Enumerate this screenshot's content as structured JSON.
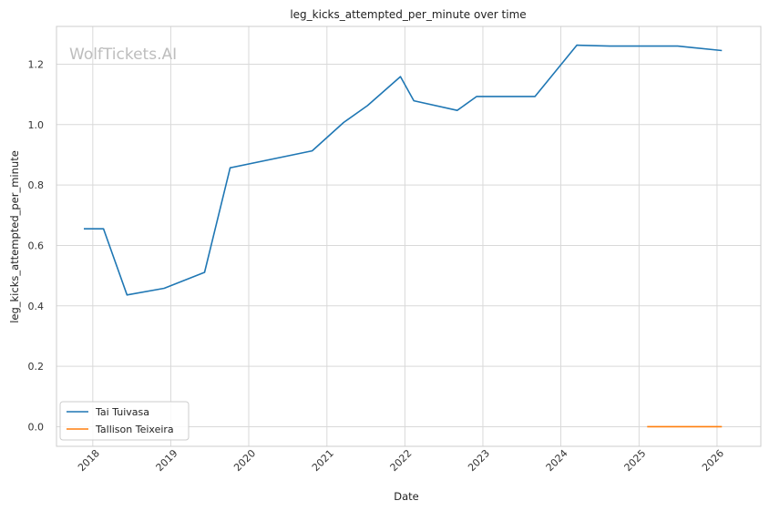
{
  "chart_data": {
    "type": "line",
    "title": "leg_kicks_attempted_per_minute over time",
    "xlabel": "Date",
    "ylabel": "leg_kicks_attempted_per_minute",
    "watermark": "WolfTickets.AI",
    "x_ticks": [
      "2018",
      "2019",
      "2020",
      "2021",
      "2022",
      "2023",
      "2024",
      "2025",
      "2026"
    ],
    "y_ticks": [
      "0.0",
      "0.2",
      "0.4",
      "0.6",
      "0.8",
      "1.0",
      "1.2"
    ],
    "xlim": [
      "2017-07-15",
      "2026-07-25"
    ],
    "ylim": [
      -0.065,
      1.325
    ],
    "grid": true,
    "legend_position": "bottom-left",
    "series": [
      {
        "name": "Tai Tuivasa",
        "color": "#1f77b4",
        "points": [
          {
            "x": "2017-11-20",
            "y": 0.655
          },
          {
            "x": "2018-02-20",
            "y": 0.655
          },
          {
            "x": "2018-06-10",
            "y": 0.436
          },
          {
            "x": "2018-12-01",
            "y": 0.458
          },
          {
            "x": "2019-06-08",
            "y": 0.511
          },
          {
            "x": "2019-10-06",
            "y": 0.857
          },
          {
            "x": "2020-10-24",
            "y": 0.913
          },
          {
            "x": "2021-03-20",
            "y": 1.007
          },
          {
            "x": "2021-07-10",
            "y": 1.063
          },
          {
            "x": "2021-12-11",
            "y": 1.159
          },
          {
            "x": "2022-02-12",
            "y": 1.079
          },
          {
            "x": "2022-09-03",
            "y": 1.047
          },
          {
            "x": "2022-12-03",
            "y": 1.093
          },
          {
            "x": "2023-09-02",
            "y": 1.093
          },
          {
            "x": "2024-03-16",
            "y": 1.263
          },
          {
            "x": "2024-08-17",
            "y": 1.26
          },
          {
            "x": "2025-07-01",
            "y": 1.26
          },
          {
            "x": "2026-01-24",
            "y": 1.245
          }
        ]
      },
      {
        "name": "Tallison Teixeira",
        "color": "#ff7f0e",
        "points": [
          {
            "x": "2025-02-08",
            "y": 0.0
          },
          {
            "x": "2025-06-28",
            "y": 0.0
          },
          {
            "x": "2026-01-24",
            "y": 0.0
          }
        ]
      }
    ]
  }
}
